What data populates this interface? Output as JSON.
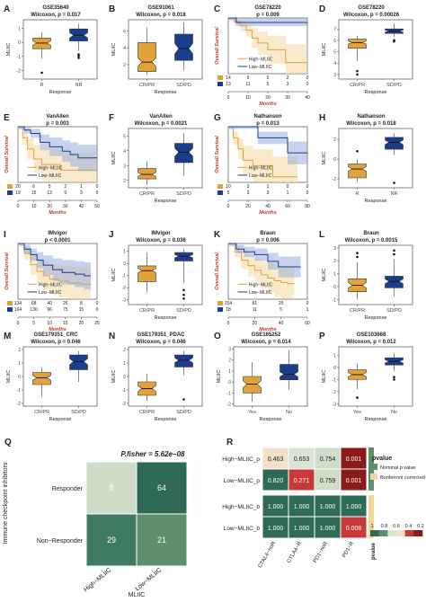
{
  "colors": {
    "orange": "#E0A23A",
    "blue": "#1A3E8C",
    "light_orange": "#F4D59A",
    "light_blue": "#8FA8DB",
    "gray_bg": "#d9d9d9"
  },
  "chart_data": [
    {
      "panel": "A",
      "type": "box",
      "title": "GSE35640",
      "subtitle": "Wilcoxon, p = 0.017",
      "ylabel": "MLIIC",
      "xlabel": "Response",
      "categories": [
        "R",
        "NR"
      ],
      "ylim": [
        -2.6,
        1.6
      ],
      "yticks": [
        -2,
        -1,
        0,
        1
      ],
      "boxes": [
        {
          "min": -1.15,
          "q1": -0.45,
          "med": -0.05,
          "q3": 0.3,
          "max": 0.75,
          "out": [
            -2.15
          ]
        },
        {
          "min": -0.6,
          "q1": 0.1,
          "med": 0.5,
          "q3": 0.95,
          "max": 1.3,
          "out": [
            -0.85,
            -0.95,
            -1.1
          ]
        }
      ]
    },
    {
      "panel": "B",
      "type": "box",
      "title": "GSE91061",
      "subtitle": "Wilcoxon, p = 0.018",
      "ylabel": "MLIIC",
      "xlabel": "Response",
      "categories": [
        "CR/PR",
        "SD/PD"
      ],
      "ylim": [
        0.3,
        7.3
      ],
      "yticks": [
        2,
        4,
        6
      ],
      "boxes": [
        {
          "min": 0.8,
          "q1": 1.2,
          "med": 2.3,
          "q3": 4.6,
          "max": 6.4,
          "out": []
        },
        {
          "min": 1.3,
          "q1": 2.5,
          "med": 3.9,
          "q3": 5.6,
          "max": 7.0,
          "out": []
        }
      ]
    },
    {
      "panel": "C",
      "type": "km",
      "title": "GSE78220",
      "subtitle": "p = 0.009",
      "ylabel": "Overall Survival",
      "xlabel": "Months",
      "xlim": [
        0,
        40
      ],
      "xticks": [
        0,
        10,
        20,
        30,
        40
      ],
      "legend": [
        "High−MLIIC",
        "Low−MLIIC"
      ],
      "risk": [
        {
          "label": "14",
          "values": [
            "14",
            "9",
            "5",
            "2",
            "0"
          ]
        },
        {
          "label": "13",
          "values": [
            "13",
            "11",
            "5",
            "3",
            "0"
          ]
        }
      ],
      "curves": [
        {
          "pts": [
            [
              0,
              1
            ],
            [
              3,
              0.93
            ],
            [
              6,
              0.86
            ],
            [
              9,
              0.78
            ],
            [
              12,
              0.64
            ],
            [
              15,
              0.55
            ],
            [
              20,
              0.43
            ],
            [
              25,
              0.43
            ],
            [
              29,
              0.2
            ],
            [
              40,
              0.2
            ]
          ]
        },
        {
          "pts": [
            [
              0,
              1
            ],
            [
              4,
              0.92
            ],
            [
              40,
              0.92
            ]
          ]
        }
      ]
    },
    {
      "panel": "D",
      "type": "box",
      "title": "GSE78220",
      "subtitle": "Wilcoxon, p = 0.00026",
      "ylabel": "MLIIC",
      "xlabel": "Response",
      "categories": [
        "CR/PR",
        "SD/PD"
      ],
      "ylim": [
        2.6,
        7.8
      ],
      "yticks": [
        3,
        4,
        5,
        6,
        7
      ],
      "boxes": [
        {
          "min": 4.2,
          "q1": 5.3,
          "med": 5.8,
          "q3": 6.1,
          "max": 6.4,
          "out": [
            3.3,
            3.0
          ]
        },
        {
          "min": 6.3,
          "q1": 6.6,
          "med": 6.8,
          "q3": 7.0,
          "max": 7.5,
          "out": [
            6.0,
            5.9
          ]
        }
      ]
    },
    {
      "panel": "E",
      "type": "km",
      "title": "VanAllen",
      "subtitle": "p = 0.003",
      "ylabel": "Overall Survival",
      "xlabel": "Months",
      "xlim": [
        0,
        50
      ],
      "xticks": [
        0,
        10,
        20,
        30,
        40,
        50
      ],
      "legend": [
        "High−MLIIC",
        "Low−MLIIC"
      ],
      "risk": [
        {
          "label": "20",
          "values": [
            "20",
            "6",
            "5",
            "2",
            "1",
            "0"
          ]
        },
        {
          "label": "19",
          "values": [
            "19",
            "15",
            "13",
            "9",
            "3",
            "0"
          ]
        }
      ],
      "curves": [
        {
          "pts": [
            [
              0,
              1
            ],
            [
              3,
              0.8
            ],
            [
              6,
              0.6
            ],
            [
              10,
              0.42
            ],
            [
              15,
              0.32
            ],
            [
              25,
              0.32
            ],
            [
              27,
              0.22
            ],
            [
              50,
              0.22
            ]
          ]
        },
        {
          "pts": [
            [
              0,
              1
            ],
            [
              4,
              0.94
            ],
            [
              8,
              0.88
            ],
            [
              14,
              0.72
            ],
            [
              20,
              0.64
            ],
            [
              28,
              0.56
            ],
            [
              33,
              0.5
            ],
            [
              38,
              0.44
            ],
            [
              50,
              0.44
            ]
          ]
        }
      ]
    },
    {
      "panel": "F",
      "type": "box",
      "title": "VanAllen",
      "subtitle": "Wilcoxon, p = 0.0021",
      "ylabel": "MLIIC",
      "xlabel": "Response",
      "categories": [
        "CR/PR",
        "SD/PD"
      ],
      "ylim": [
        1.5,
        5.5
      ],
      "yticks": [
        2,
        3,
        4,
        5
      ],
      "boxes": [
        {
          "min": 1.7,
          "q1": 2.1,
          "med": 2.4,
          "q3": 2.8,
          "max": 3.3,
          "out": []
        },
        {
          "min": 2.3,
          "q1": 3.2,
          "med": 3.9,
          "q3": 4.5,
          "max": 5.2,
          "out": []
        }
      ]
    },
    {
      "panel": "G",
      "type": "km",
      "title": "Nathanson",
      "subtitle": "p = 0.013",
      "ylabel": "Overall Survival",
      "xlabel": "Months",
      "xlim": [
        0,
        80
      ],
      "xticks": [
        0,
        20,
        40,
        60,
        80
      ],
      "legend": [
        "High−MLIIC",
        "Low−MLIIC"
      ],
      "risk": [
        {
          "label": "10",
          "values": [
            "10",
            "3",
            "1",
            "0",
            "0"
          ]
        },
        {
          "label": "5",
          "values": [
            "5",
            "3",
            "3",
            "1",
            "0"
          ]
        }
      ],
      "curves": [
        {
          "pts": [
            [
              0,
              1
            ],
            [
              5,
              0.8
            ],
            [
              10,
              0.6
            ],
            [
              15,
              0.4
            ],
            [
              25,
              0.3
            ],
            [
              40,
              0.3
            ],
            [
              45,
              0.1
            ],
            [
              70,
              0.1
            ]
          ]
        },
        {
          "pts": [
            [
              0,
              1
            ],
            [
              30,
              0.8
            ],
            [
              55,
              0.8
            ],
            [
              60,
              0.53
            ],
            [
              80,
              0.53
            ]
          ]
        }
      ]
    },
    {
      "panel": "H",
      "type": "box",
      "title": "Nathanson",
      "subtitle": "Wilcoxon, p = 0.018",
      "ylabel": "MLIIC",
      "xlabel": "Response",
      "categories": [
        "R",
        "NR"
      ],
      "ylim": [
        -2.9,
        3.1
      ],
      "yticks": [
        -2,
        0,
        2
      ],
      "boxes": [
        {
          "min": -2.3,
          "q1": -1.9,
          "med": -1.0,
          "q3": -0.5,
          "max": 0.0,
          "out": [
            0.8
          ]
        },
        {
          "min": 0.4,
          "q1": 1.0,
          "med": 1.7,
          "q3": 2.2,
          "max": 2.6,
          "out": [
            -2.4
          ]
        }
      ]
    },
    {
      "panel": "I",
      "type": "km",
      "title": "IMvigor",
      "subtitle": "p < 0.0001",
      "ylabel": "Overall Survival",
      "xlabel": "Months",
      "xlim": [
        0,
        25
      ],
      "xticks": [
        0,
        5,
        10,
        15,
        20,
        25
      ],
      "legend": [
        "High−MLIIC",
        "Low−MLIIC"
      ],
      "risk": [
        {
          "label": "134",
          "values": [
            "134",
            "68",
            "40",
            "26",
            "8",
            "0"
          ]
        },
        {
          "label": "164",
          "values": [
            "164",
            "130",
            "96",
            "75",
            "15",
            "0"
          ]
        }
      ],
      "curves": [
        {
          "pts": [
            [
              0,
              1
            ],
            [
              2,
              0.82
            ],
            [
              4,
              0.62
            ],
            [
              6,
              0.5
            ],
            [
              8,
              0.42
            ],
            [
              10,
              0.36
            ],
            [
              13,
              0.32
            ],
            [
              16,
              0.29
            ],
            [
              20,
              0.27
            ],
            [
              23,
              0.26
            ]
          ]
        },
        {
          "pts": [
            [
              0,
              1
            ],
            [
              2,
              0.9
            ],
            [
              4,
              0.8
            ],
            [
              6,
              0.7
            ],
            [
              8,
              0.61
            ],
            [
              11,
              0.53
            ],
            [
              14,
              0.48
            ],
            [
              18,
              0.45
            ],
            [
              21,
              0.42
            ],
            [
              23,
              0.42
            ]
          ]
        }
      ]
    },
    {
      "panel": "J",
      "type": "box",
      "title": "IMvigor",
      "subtitle": "Wilcoxon, p = 0.036",
      "ylabel": "MLIIC",
      "xlabel": "Response",
      "categories": [
        "CR/PR",
        "SD/PD"
      ],
      "ylim": [
        -3.4,
        1.5
      ],
      "yticks": [
        -3,
        -2,
        -1,
        0,
        1
      ],
      "boxes": [
        {
          "min": -2.4,
          "q1": -1.5,
          "med": -0.6,
          "q3": -0.2,
          "max": 0.9,
          "out": []
        },
        {
          "min": -1.6,
          "q1": 0.2,
          "med": 0.6,
          "q3": 0.9,
          "max": 1.2,
          "out": [
            -2.2,
            -2.6,
            -2.9
          ]
        }
      ]
    },
    {
      "panel": "K",
      "type": "km",
      "title": "Braun",
      "subtitle": "p = 0.006",
      "ylabel": "Overall Survival",
      "xlabel": "Months",
      "xlim": [
        0,
        60
      ],
      "xticks": [
        0,
        20,
        40,
        60
      ],
      "legend": [
        "High−MLIIC",
        "Low−MLIIC"
      ],
      "risk": [
        {
          "label": "154",
          "values": [
            "154",
            "81",
            "25",
            "0"
          ]
        },
        {
          "label": "18",
          "values": [
            "18",
            "11",
            "5",
            "1"
          ]
        }
      ],
      "curves": [
        {
          "pts": [
            [
              0,
              1
            ],
            [
              5,
              0.85
            ],
            [
              10,
              0.7
            ],
            [
              15,
              0.6
            ],
            [
              20,
              0.52
            ],
            [
              25,
              0.44
            ],
            [
              30,
              0.38
            ],
            [
              35,
              0.33
            ],
            [
              40,
              0.3
            ],
            [
              45,
              0.28
            ],
            [
              50,
              0.27
            ]
          ]
        },
        {
          "pts": [
            [
              0,
              1
            ],
            [
              6,
              0.9
            ],
            [
              12,
              0.85
            ],
            [
              20,
              0.8
            ],
            [
              30,
              0.68
            ],
            [
              38,
              0.58
            ],
            [
              55,
              0.58
            ]
          ]
        }
      ]
    },
    {
      "panel": "L",
      "type": "box",
      "title": "Braun",
      "subtitle": "Wilcoxon, p = 0.0015",
      "ylabel": "MLIIC",
      "xlabel": "Response",
      "categories": [
        "CR/PR",
        "SD/PD"
      ],
      "ylim": [
        -1.4,
        3.2
      ],
      "yticks": [
        -1,
        0,
        1,
        2,
        3
      ],
      "boxes": [
        {
          "min": -1.0,
          "q1": -0.4,
          "med": 0.1,
          "q3": 0.6,
          "max": 1.9,
          "out": [
            2.6,
            2.3
          ]
        },
        {
          "min": -0.8,
          "q1": -0.1,
          "med": 0.4,
          "q3": 0.8,
          "max": 2.1,
          "out": [
            2.8,
            2.5
          ]
        }
      ]
    },
    {
      "panel": "M",
      "type": "box",
      "title": "GSE179351_CRC",
      "subtitle": "Wilcoxon, p = 0.046",
      "ylabel": "MLIIC",
      "xlabel": "Response",
      "categories": [
        "CR/PR",
        "SD/PD"
      ],
      "ylim": [
        -2.2,
        2.2
      ],
      "yticks": [
        -2,
        -1,
        0,
        1,
        2
      ],
      "boxes": [
        {
          "min": -1.5,
          "q1": -0.6,
          "med": -0.1,
          "q3": 0.3,
          "max": 0.7,
          "out": []
        },
        {
          "min": -0.4,
          "q1": 0.5,
          "med": 1.1,
          "q3": 1.6,
          "max": 1.9,
          "out": []
        }
      ]
    },
    {
      "panel": "N",
      "type": "box",
      "title": "GSE179351_PDAC",
      "subtitle": "Wilcoxon, p = 0.046",
      "ylabel": "MLIIC",
      "xlabel": "Response",
      "categories": [
        "CR/PR",
        "SD/PD"
      ],
      "ylim": [
        -2.2,
        2.2
      ],
      "yticks": [
        -2,
        -1,
        0,
        1,
        2
      ],
      "boxes": [
        {
          "min": -1.8,
          "q1": -1.4,
          "med": -0.9,
          "q3": -0.4,
          "max": 0.2,
          "out": []
        },
        {
          "min": 0.1,
          "q1": 0.7,
          "med": 1.2,
          "q3": 1.6,
          "max": 1.9,
          "out": [
            -1.7
          ]
        }
      ]
    },
    {
      "panel": "O",
      "type": "box",
      "title": "GSE165252",
      "subtitle": "Wilcoxon, p = 0.014",
      "ylabel": "MLIIC",
      "xlabel": "Response",
      "categories": [
        "Yes",
        "No"
      ],
      "ylim": [
        -2.2,
        3.2
      ],
      "yticks": [
        -2,
        -1,
        0,
        1,
        2,
        3
      ],
      "boxes": [
        {
          "min": -1.8,
          "q1": -1.0,
          "med": -0.2,
          "q3": 0.5,
          "max": 1.8,
          "out": []
        },
        {
          "min": -0.7,
          "q1": 0.2,
          "med": 0.7,
          "q3": 1.6,
          "max": 2.9,
          "out": []
        }
      ]
    },
    {
      "panel": "P",
      "type": "box",
      "title": "GSE103668",
      "subtitle": "Wilcoxon, p = 0.012",
      "ylabel": "MLIIC",
      "xlabel": "Response",
      "categories": [
        "Yes",
        "No"
      ],
      "ylim": [
        -3.2,
        1.7
      ],
      "yticks": [
        -3,
        -2,
        -1,
        0,
        1
      ],
      "boxes": [
        {
          "min": -1.8,
          "q1": -1.0,
          "med": -0.6,
          "q3": -0.2,
          "max": 0.3,
          "out": [
            -2.5
          ]
        },
        {
          "min": -0.3,
          "q1": 0.2,
          "med": 0.5,
          "q3": 0.8,
          "max": 1.2,
          "out": [
            -0.8,
            -1.0
          ]
        }
      ]
    },
    {
      "panel": "Q",
      "type": "heatmap",
      "title": "P.fisher = 5.62e−08",
      "ylabel": "Immune checkpoint inhibitors",
      "xlabel": "MLIIC",
      "rows": [
        "Responder",
        "Non−Responder"
      ],
      "cols": [
        "High−MLIIC",
        "Low−MLIIC"
      ],
      "values": [
        [
          8,
          64
        ],
        [
          29,
          21
        ]
      ]
    },
    {
      "panel": "R",
      "type": "heatmap",
      "rows": [
        "High−MLIIC_p",
        "Low−MLIIC_p",
        "High−MLIIC_b",
        "Low−MLIIC_b"
      ],
      "cols": [
        "CTAL4−noR",
        "CTLA4−R",
        "PD1−noR",
        "PD1−R"
      ],
      "values": [
        [
          "0.463",
          "0.653",
          "0.754",
          "0.001"
        ],
        [
          "0.820",
          "0.271",
          "0.759",
          "0.001"
        ],
        [
          "1.000",
          "1.000",
          "1.000",
          "1.000"
        ],
        [
          "1.000",
          "1.000",
          "1.000",
          "0.008"
        ]
      ],
      "legend_title": "pvalue",
      "legend_items": [
        "Nominal p value",
        "Bonferroni corrected"
      ],
      "scale_ticks": [
        "1",
        "0.8",
        "0.6",
        "0.4",
        "0.2"
      ],
      "row_annotation_label": "pvalue"
    }
  ]
}
